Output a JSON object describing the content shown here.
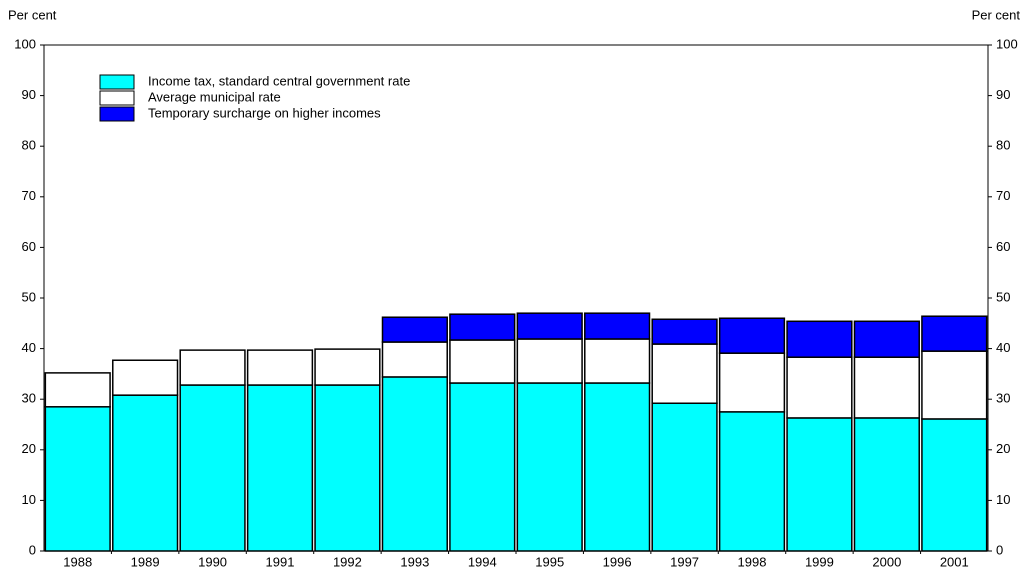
{
  "chart_data": {
    "type": "stacked_bar",
    "ylabel": "Per cent",
    "y2label": "Per cent",
    "categories": [
      "1988",
      "1989",
      "1990",
      "1991",
      "1992",
      "1993",
      "1994",
      "1995",
      "1996",
      "1997",
      "1998",
      "1999",
      "2000",
      "2001"
    ],
    "series": [
      {
        "name": "Income tax, standard central government rate",
        "color": "#00ffff",
        "values": [
          28.5,
          30.8,
          32.8,
          32.8,
          32.8,
          34.4,
          33.2,
          33.2,
          33.2,
          29.2,
          27.5,
          26.3,
          26.3,
          26.1
        ]
      },
      {
        "name": "Average municipal rate",
        "color": "#ffffff",
        "values": [
          6.7,
          6.9,
          6.9,
          6.9,
          7.1,
          6.9,
          8.5,
          8.7,
          8.7,
          11.7,
          11.6,
          12.0,
          12.0,
          13.4
        ]
      },
      {
        "name": "Temporary surcharge on higher incomes",
        "color": "#0000ff",
        "values": [
          0,
          0,
          0,
          0,
          0,
          4.9,
          5.1,
          5.1,
          5.1,
          4.9,
          6.9,
          7.1,
          7.1,
          6.9
        ]
      }
    ],
    "ylim": [
      0,
      100
    ],
    "yticks": [
      0,
      10,
      20,
      30,
      40,
      50,
      60,
      70,
      80,
      90,
      100
    ],
    "y2lim": [
      0,
      100
    ],
    "y2ticks": [
      0,
      10,
      20,
      30,
      40,
      50,
      60,
      70,
      80,
      90,
      100
    ],
    "legend": "top-left"
  }
}
